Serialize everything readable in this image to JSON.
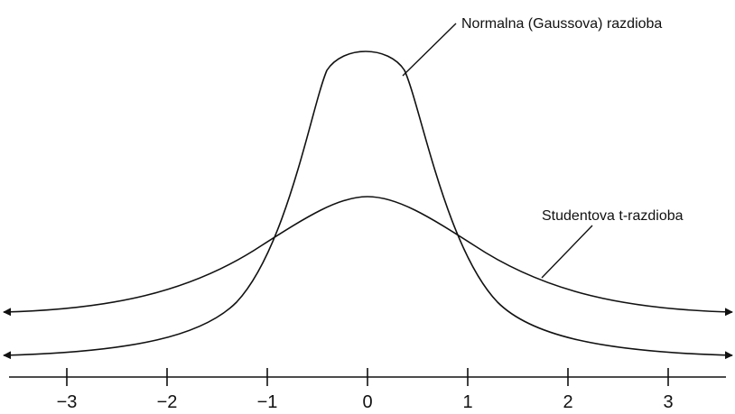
{
  "labels": {
    "normal": "Normalna (Gaussova) razdioba",
    "student": "Studentova t-razdioba"
  },
  "axis": {
    "ticks": [
      {
        "value": -3,
        "label": "−3"
      },
      {
        "value": -2,
        "label": "−2"
      },
      {
        "value": -1,
        "label": "−1"
      },
      {
        "value": 0,
        "label": "0"
      },
      {
        "value": 1,
        "label": "1"
      },
      {
        "value": 2,
        "label": "2"
      },
      {
        "value": 3,
        "label": "3"
      }
    ]
  },
  "colors": {
    "ink": "#111111",
    "background": "#ffffff"
  }
}
